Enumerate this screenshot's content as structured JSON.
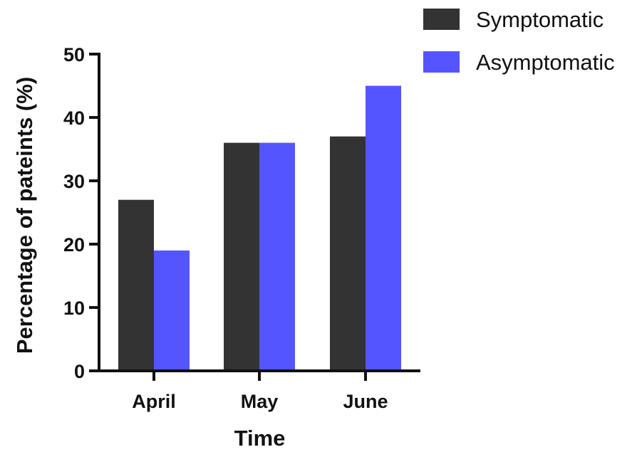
{
  "chart_data": {
    "type": "bar",
    "categories": [
      "April",
      "May",
      "June"
    ],
    "series": [
      {
        "name": "Symptomatic",
        "values": [
          27,
          36,
          37
        ],
        "color": "#333333"
      },
      {
        "name": "Asymptomatic",
        "values": [
          19,
          36,
          45
        ],
        "color": "#5555ff"
      }
    ],
    "title": "",
    "xlabel": "Time",
    "ylabel": "Percentage of pateints (%)",
    "ylim": [
      0,
      50
    ],
    "yticks": [
      "0",
      "10",
      "20",
      "30",
      "40",
      "50"
    ],
    "grid": false,
    "legend_position": "top-right"
  }
}
